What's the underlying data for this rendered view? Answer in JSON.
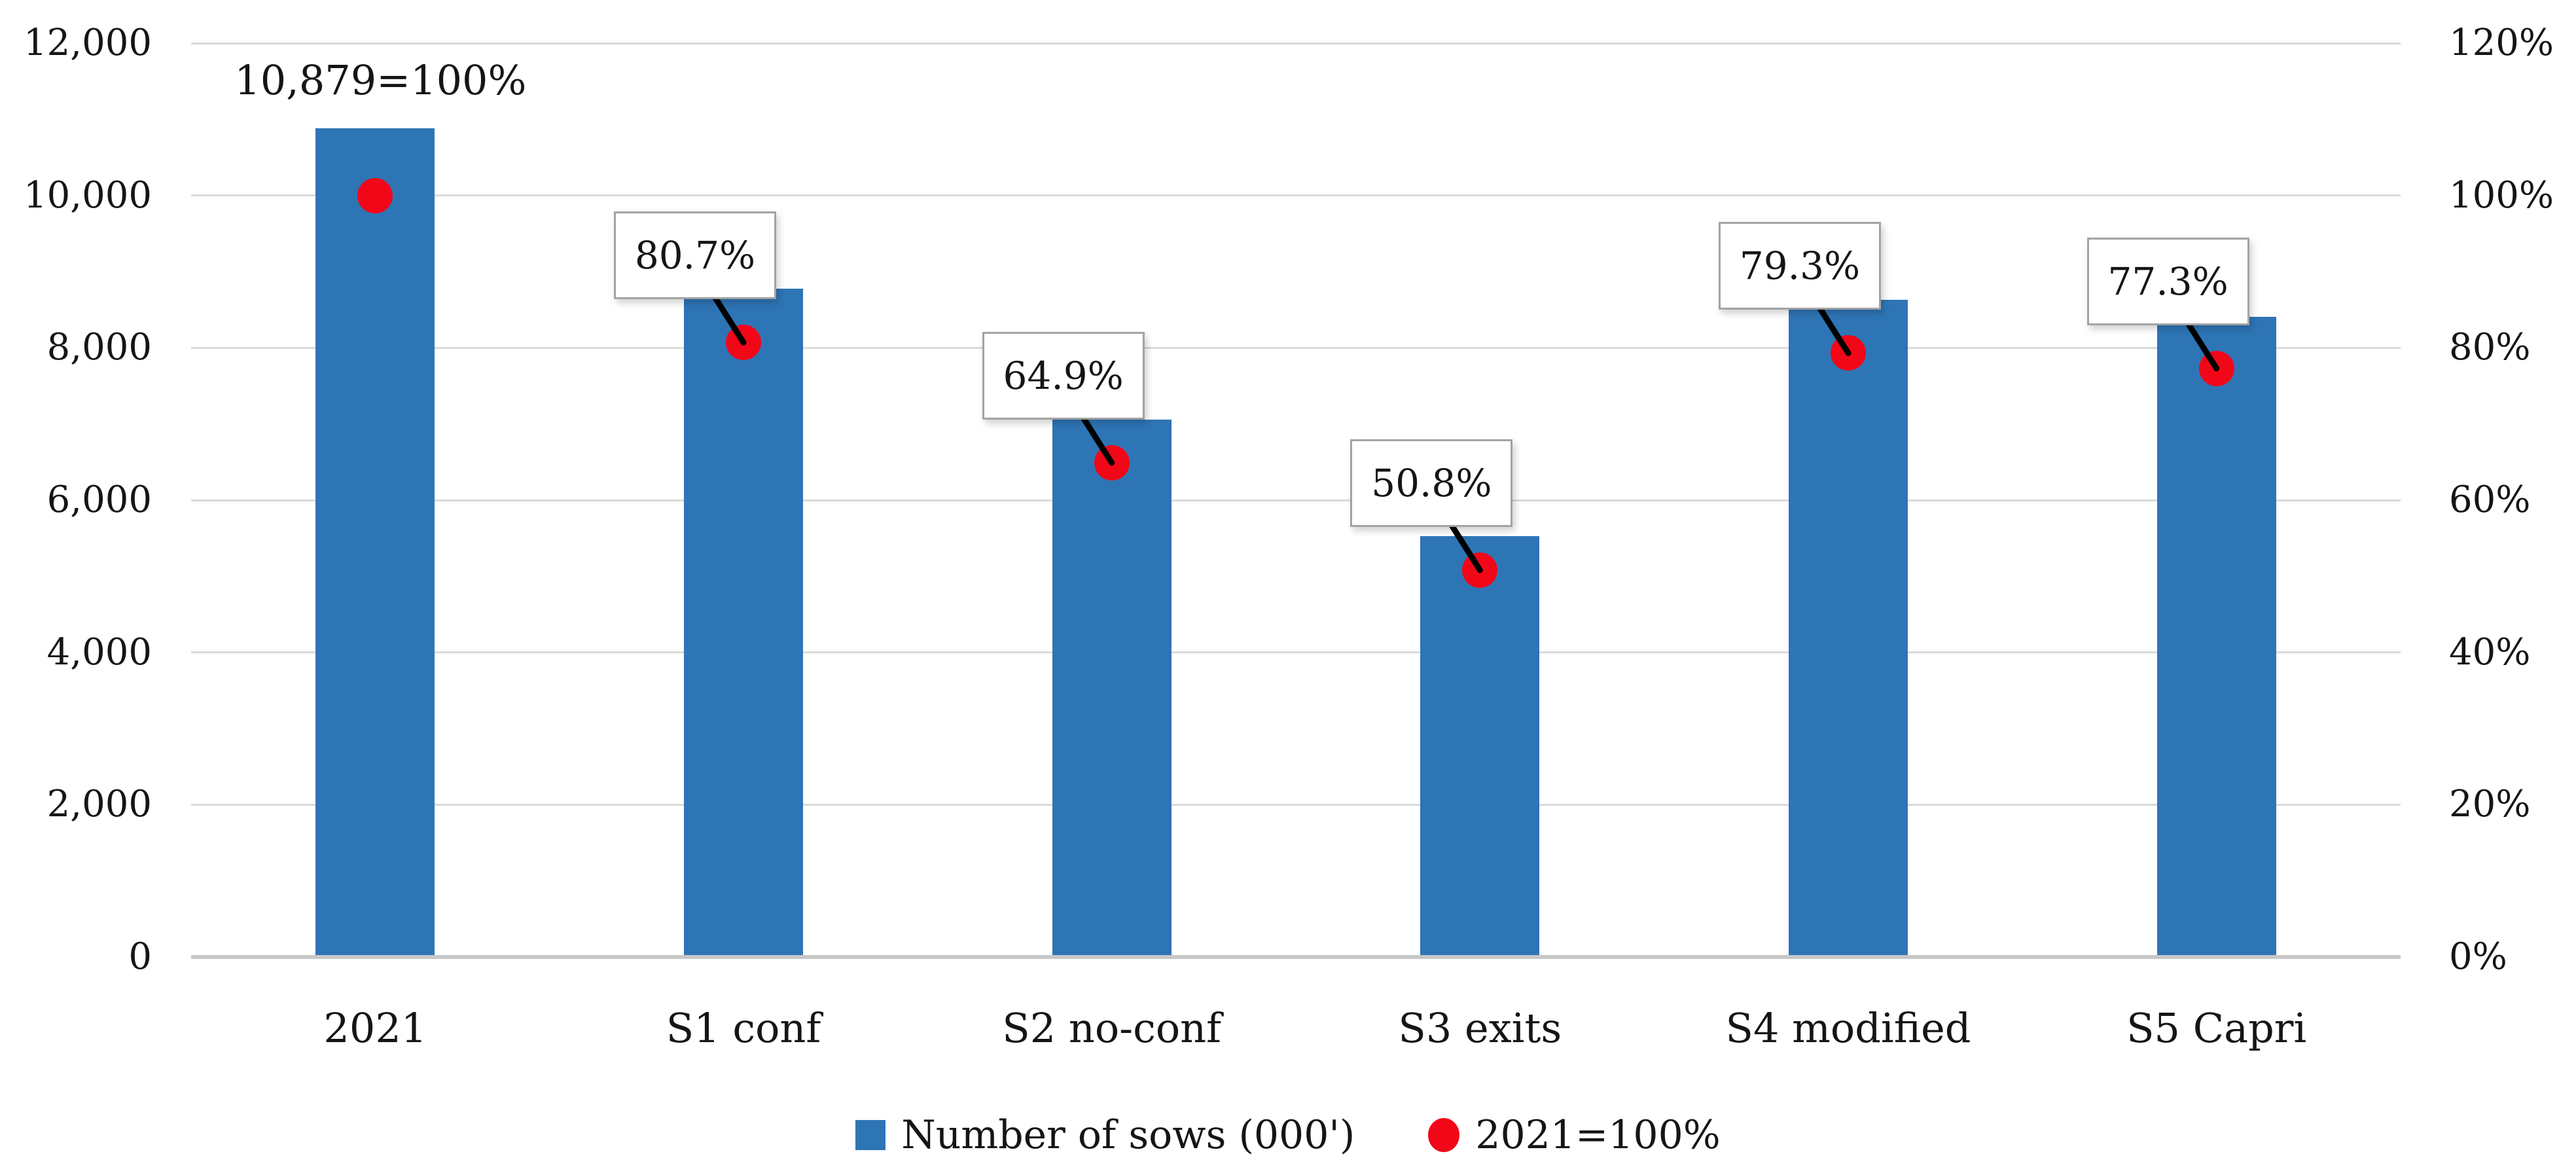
{
  "chart_data": {
    "type": "bar",
    "subtype": "combo-bar-scatter",
    "title": "",
    "categories": [
      "2021",
      "S1 conf",
      "S2 no-conf",
      "S3 exits",
      "S4 modified",
      "S5 Capri"
    ],
    "series": [
      {
        "name": "Number of sows (000')",
        "type": "bar",
        "axis": "left",
        "color": "#2E75B6",
        "values": [
          10879,
          8779,
          7060,
          5527,
          8627,
          8409
        ]
      },
      {
        "name": "2021=100%",
        "type": "scatter",
        "axis": "right",
        "color": "#F20718",
        "values_percent": [
          100,
          80.7,
          64.9,
          50.8,
          79.3,
          77.3
        ]
      }
    ],
    "data_labels": {
      "items": [
        {
          "text": "10,879=100%",
          "boxed": false
        },
        {
          "text": "80.7%",
          "boxed": true
        },
        {
          "text": "64.9%",
          "boxed": true
        },
        {
          "text": "50.8%",
          "boxed": true
        },
        {
          "text": "79.3%",
          "boxed": true
        },
        {
          "text": "77.3%",
          "boxed": true
        }
      ]
    },
    "left_axis": {
      "min": 0,
      "max": 12000,
      "step": 2000,
      "ticks": [
        "12,000",
        "10,000",
        "8,000",
        "6,000",
        "4,000",
        "2,000",
        "0"
      ]
    },
    "right_axis": {
      "min": 0,
      "max": 120,
      "step": 20,
      "unit": "%",
      "ticks": [
        "120%",
        "100%",
        "80%",
        "60%",
        "40%",
        "20%",
        "0%"
      ]
    },
    "gridlines": true,
    "legend": {
      "position": "bottom",
      "items": [
        {
          "label": "Number of sows (000')",
          "marker": "square",
          "color": "#2E75B6"
        },
        {
          "label": "2021=100%",
          "marker": "circle",
          "color": "#F20718"
        }
      ]
    },
    "colors": {
      "bar": "#2E75B6",
      "marker": "#F20718",
      "gridline": "#DADADA",
      "baseline": "#C8C8C8",
      "callout_border": "#A3A3A3",
      "leader_line": "#000000",
      "text": "#151515",
      "background": "#FFFFFF"
    }
  }
}
